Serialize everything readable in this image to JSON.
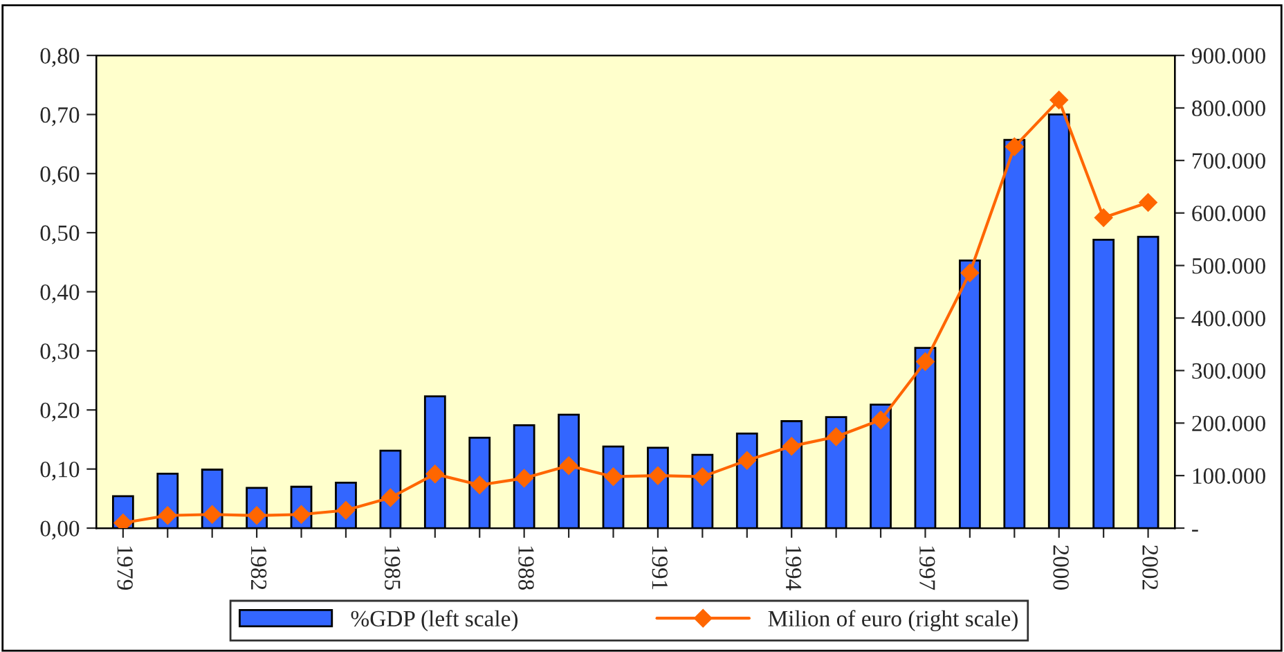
{
  "chart_data": {
    "type": "bar",
    "categories": [
      "1979",
      null,
      null,
      "1982",
      null,
      null,
      "1985",
      null,
      null,
      "1988",
      null,
      null,
      "1991",
      null,
      null,
      "1994",
      null,
      null,
      "1997",
      null,
      null,
      "2000",
      null,
      "2002"
    ],
    "series": [
      {
        "name": "%GDP (left scale)",
        "color": "#3366ff",
        "values": [
          0.054,
          0.092,
          0.099,
          0.068,
          0.07,
          0.077,
          0.131,
          0.223,
          0.153,
          0.174,
          0.192,
          0.138,
          0.136,
          0.124,
          0.16,
          0.181,
          0.188,
          0.209,
          0.305,
          0.453,
          0.657,
          0.7,
          0.488,
          0.493
        ]
      },
      {
        "name": "Milion of euro (right scale)",
        "type": "line",
        "axis": "y2",
        "color": "#ff6600",
        "marker": "diamond",
        "values": [
          10000,
          24000,
          26000,
          24000,
          26000,
          34000,
          58000,
          103000,
          82000,
          95000,
          119000,
          98000,
          100000,
          98000,
          129000,
          156000,
          174000,
          206000,
          317000,
          486000,
          726000,
          815000,
          591000,
          620000
        ]
      }
    ],
    "ylim": [
      0,
      0.8
    ],
    "yticks": [
      {
        "value": 0,
        "label": "0,00"
      },
      {
        "value": 0.1,
        "label": "0,10"
      },
      {
        "value": 0.2,
        "label": "0,20"
      },
      {
        "value": 0.3,
        "label": "0,30"
      },
      {
        "value": 0.4,
        "label": "0,40"
      },
      {
        "value": 0.5,
        "label": "0,50"
      },
      {
        "value": 0.6,
        "label": "0,60"
      },
      {
        "value": 0.7,
        "label": "0,70"
      },
      {
        "value": 0.8,
        "label": "0,80"
      }
    ],
    "y2lim": [
      0,
      900000
    ],
    "y2ticks": [
      {
        "value": 0,
        "label": "-"
      },
      {
        "value": 100000,
        "label": "100.000"
      },
      {
        "value": 200000,
        "label": "200.000"
      },
      {
        "value": 300000,
        "label": "300.000"
      },
      {
        "value": 400000,
        "label": "400.000"
      },
      {
        "value": 500000,
        "label": "500.000"
      },
      {
        "value": 600000,
        "label": "600.000"
      },
      {
        "value": 700000,
        "label": "700.000"
      },
      {
        "value": 800000,
        "label": "800.000"
      },
      {
        "value": 900000,
        "label": "900.000"
      }
    ],
    "grid": false,
    "legend": "bottom"
  }
}
